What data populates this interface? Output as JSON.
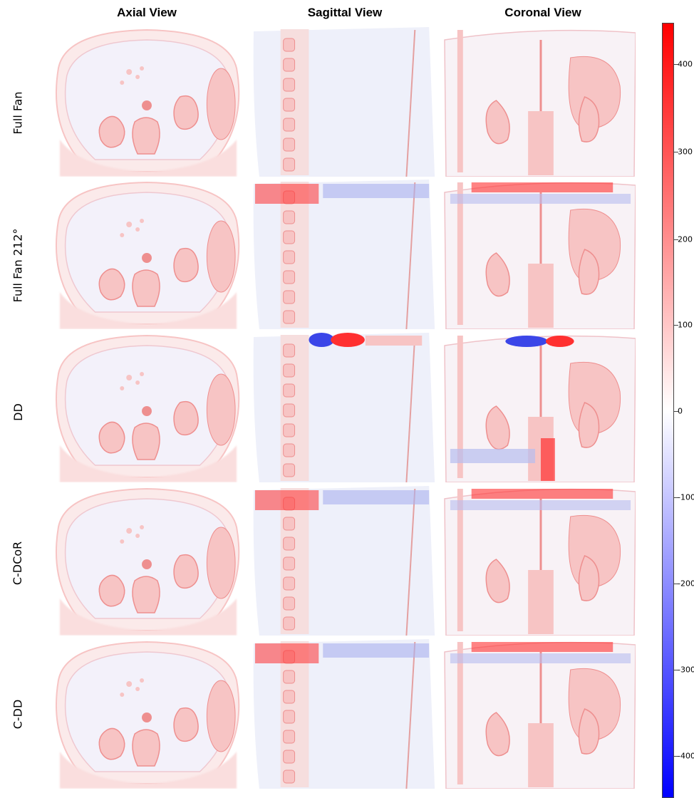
{
  "columns": [
    "Axial View",
    "Sagittal View",
    "Coronal View"
  ],
  "rows": [
    "Full Fan",
    "Full Fan 212°",
    "DD",
    "C-DCoR",
    "C-DD"
  ],
  "colorbar": {
    "ticks": [
      "400",
      "300",
      "200",
      "100",
      "0",
      "-100",
      "-200",
      "-300",
      "-400"
    ],
    "colors": {
      "max": "#ff0000",
      "mid": "#ffffff",
      "min": "#0000ff"
    }
  },
  "panel_kinds": [
    "axial-ct-difference-image",
    "sagittal-ct-difference-image",
    "coronal-ct-difference-image"
  ]
}
